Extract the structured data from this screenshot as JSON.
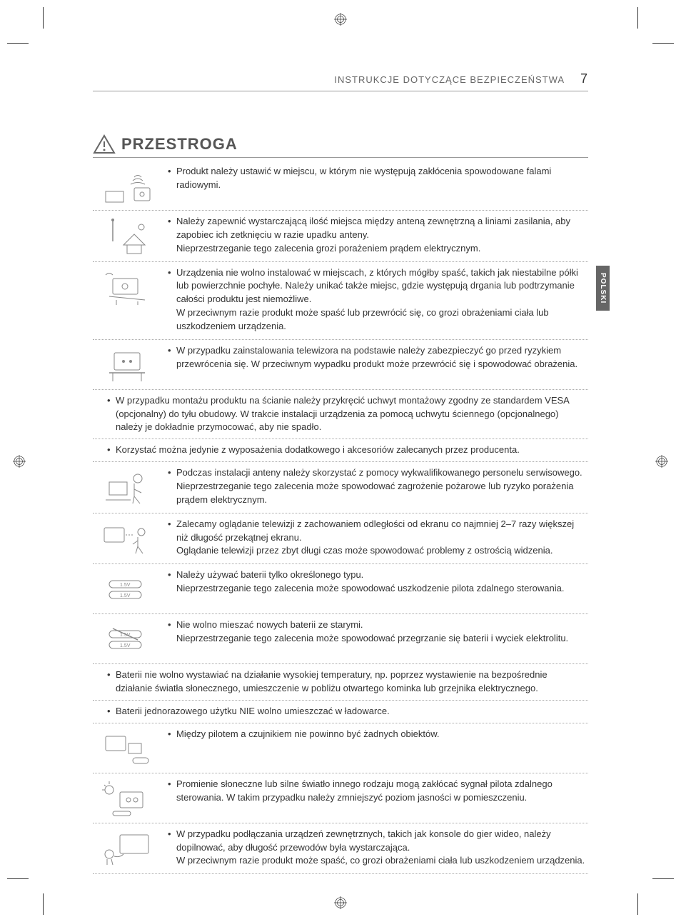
{
  "header": {
    "section_title": "INSTRUKCJE DOTYCZĄCE BEZPIECZEŃSTWA",
    "page_number": "7"
  },
  "side_tab": "POLSKI",
  "caution": {
    "title": "PRZESTROGA"
  },
  "items": [
    {
      "type": "icon-row",
      "icon": "radio-waves",
      "text": "Produkt należy ustawić w miejscu, w którym nie występują zakłócenia spowodowane falami radiowymi."
    },
    {
      "type": "icon-row",
      "icon": "antenna",
      "text": "Należy zapewnić wystarczającą ilość miejsca między anteną zewnętrzną a liniami zasilania, aby zapobiec ich zetknięciu w razie upadku anteny.\nNieprzestrzeganie tego zalecenia grozi porażeniem prądem elektrycznym."
    },
    {
      "type": "icon-row",
      "icon": "unstable-shelf",
      "text": "Urządzenia nie wolno instalować w miejscach, z których mógłby spaść, takich jak niestabilne półki lub powierzchnie pochyłe. Należy unikać także miejsc, gdzie występują drgania lub podtrzymanie całości produktu jest niemożliwe.\nW przeciwnym razie produkt może spaść lub przewrócić się, co grozi obrażeniami ciała lub uszkodzeniem urządzenia."
    },
    {
      "type": "icon-row",
      "icon": "tv-stand",
      "text": "W przypadku zainstalowania telewizora na podstawie należy zabezpieczyć go przed ryzykiem przewrócenia się. W przeciwnym wypadku produkt może przewrócić się i spowodować obrażenia."
    },
    {
      "type": "full-row",
      "text": "W przypadku montażu produktu na ścianie należy przykręcić uchwyt montażowy zgodny ze standardem VESA (opcjonalny) do tyłu obudowy. W trakcie instalacji urządzenia za pomocą uchwytu ściennego (opcjonalnego) należy je dokładnie przymocować, aby nie spadło."
    },
    {
      "type": "full-row",
      "text": "Korzystać można jedynie z wyposażenia dodatkowego i akcesoriów zalecanych przez producenta."
    },
    {
      "type": "icon-row",
      "icon": "technician",
      "text": "Podczas instalacji anteny należy skorzystać z pomocy wykwalifikowanego personelu serwisowego.\nNieprzestrzeganie tego zalecenia może spowodować zagrożenie pożarowe lub ryzyko porażenia prądem elektrycznym."
    },
    {
      "type": "icon-row",
      "icon": "viewing-distance",
      "text": "Zalecamy oglądanie telewizji z zachowaniem odległości od ekranu co najmniej 2–7 razy większej niż długość przekątnej ekranu.\nOglądanie telewizji przez zbyt długi czas może spowodować problemy z ostrością widzenia."
    },
    {
      "type": "icon-row",
      "icon": "batteries",
      "text": "Należy używać baterii tylko określonego typu.\nNieprzestrzeganie tego zalecenia może spowodować uszkodzenie pilota zdalnego sterowania."
    },
    {
      "type": "icon-row",
      "icon": "batteries-mix",
      "text": "Nie wolno mieszać nowych baterii ze starymi.\nNieprzestrzeganie tego zalecenia może spowodować przegrzanie się baterii i wyciek elektrolitu."
    },
    {
      "type": "full-row",
      "text": "Baterii nie wolno wystawiać na działanie wysokiej temperatury, np. poprzez wystawienie na bezpośrednie działanie światła słonecznego, umieszczenie w pobliżu otwartego kominka lub grzejnika elektrycznego."
    },
    {
      "type": "full-row",
      "text": "Baterii jednorazowego użytku NIE wolno umieszczać w ładowarce."
    },
    {
      "type": "icon-row",
      "icon": "remote-obstruction",
      "text": "Między pilotem a czujnikiem nie powinno być żadnych obiektów."
    },
    {
      "type": "icon-row",
      "icon": "sunlight",
      "text": "Promienie słoneczne lub silne światło innego rodzaju mogą zakłócać sygnał pilota zdalnego sterowania. W takim przypadku należy zmniejszyć poziom jasności w pomieszczeniu."
    },
    {
      "type": "icon-row",
      "icon": "external-device",
      "text": "W przypadku podłączania urządzeń zewnętrznych, takich jak konsole do gier wideo, należy dopilnować, aby długość przewodów była wystarczająca.\nW przeciwnym razie produkt może spaść, co grozi obrażeniami ciała lub uszkodzeniem urządzenia."
    }
  ]
}
